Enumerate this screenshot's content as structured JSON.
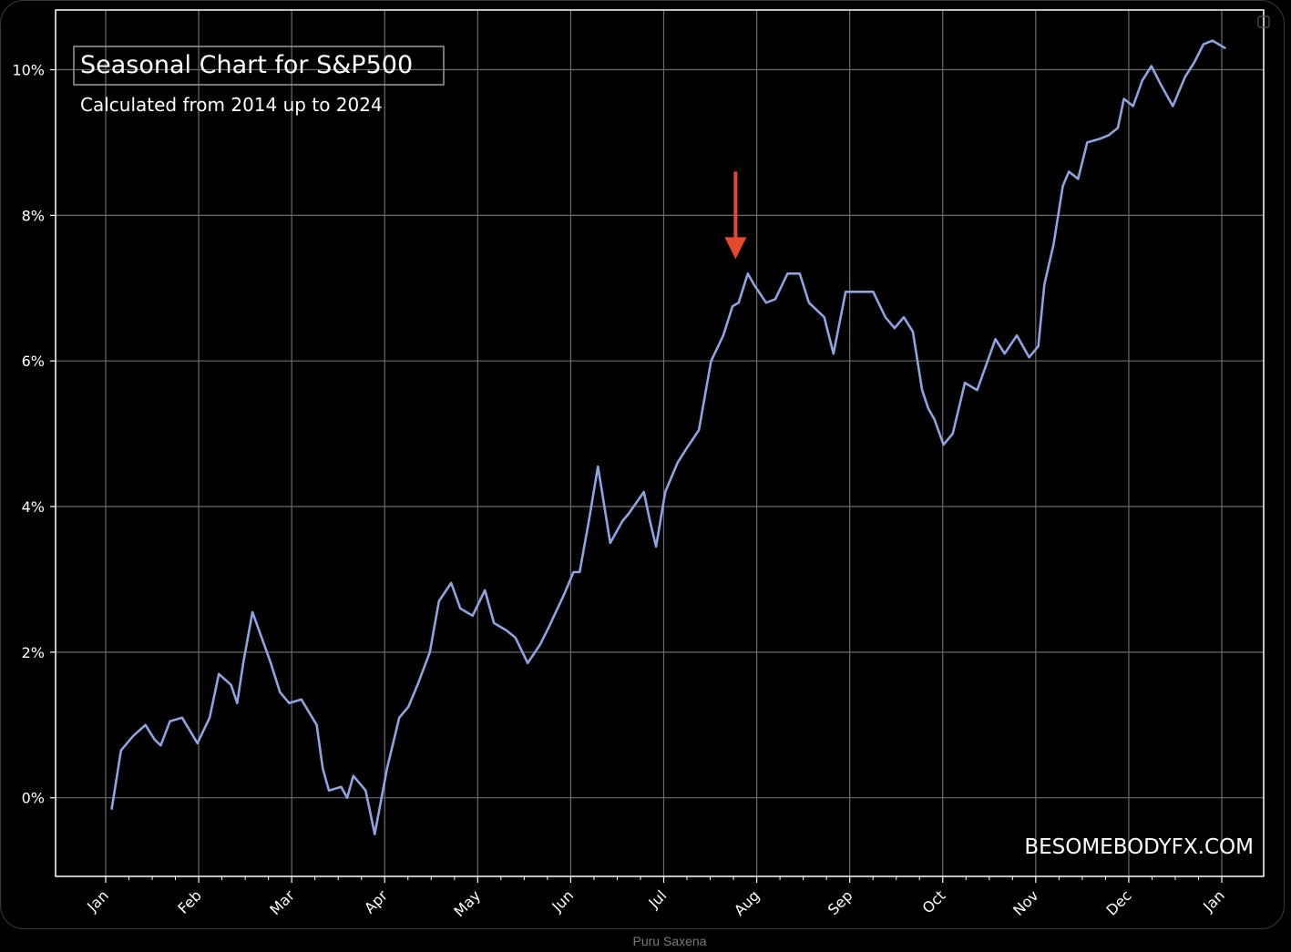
{
  "credit": "Puru Saxena",
  "chart_data": {
    "type": "line",
    "title": "Seasonal Chart for S&P500",
    "subtitle": "Calculated from 2014 up to 2024",
    "watermark": "BESOMEBODYFX.COM",
    "xlabel": "",
    "ylabel": "",
    "ytick_labels": [
      "0%",
      "2%",
      "4%",
      "6%",
      "8%",
      "10%"
    ],
    "ytick_values": [
      0,
      2,
      4,
      6,
      8,
      10
    ],
    "ylim": [
      -1.08,
      10.82
    ],
    "xtick_labels": [
      "Jan",
      "Feb",
      "Mar",
      "Apr",
      "May",
      "Jun",
      "Jul",
      "Aug",
      "Sep",
      "Oct",
      "Nov",
      "Dec",
      "Jan"
    ],
    "grid": true,
    "legend": "none",
    "line_color": "#8fa3e0",
    "annotation_color": "#e64a2e",
    "annotation": {
      "type": "arrow",
      "day": 206,
      "value_from": 8.6,
      "value_to": 7.4
    },
    "series": [
      {
        "x_unit": "day of year",
        "x": [
          2,
          5,
          9,
          13,
          16,
          18,
          21,
          25,
          30,
          34,
          37,
          41,
          43,
          45,
          48,
          51,
          54,
          57,
          60,
          64,
          69,
          71,
          73,
          77,
          79,
          81,
          83,
          85,
          88,
          92,
          96,
          99,
          102,
          106,
          109,
          113,
          116,
          120,
          124,
          127,
          131,
          134,
          138,
          142,
          145,
          150,
          153,
          155,
          158,
          161,
          165,
          169,
          171,
          176,
          178,
          180,
          183,
          187,
          190,
          194,
          198,
          202,
          205,
          207,
          210,
          212,
          216,
          219,
          223,
          227,
          230,
          235,
          238,
          242,
          247,
          251,
          255,
          258,
          261,
          264,
          267,
          269,
          271,
          274,
          277,
          281,
          285,
          288,
          291,
          294,
          298,
          302,
          305,
          307,
          310,
          313,
          315,
          318,
          321,
          325,
          328,
          331,
          333,
          336,
          339,
          342,
          345,
          349,
          353,
          356,
          359,
          362,
          366
        ],
        "values": [
          -0.15,
          0.65,
          0.85,
          1.0,
          0.8,
          0.72,
          1.05,
          1.1,
          0.75,
          1.1,
          1.7,
          1.55,
          1.3,
          1.85,
          2.55,
          2.2,
          1.85,
          1.45,
          1.3,
          1.35,
          1.0,
          0.4,
          0.1,
          0.15,
          0.0,
          0.3,
          0.2,
          0.1,
          -0.5,
          0.4,
          1.1,
          1.25,
          1.55,
          2.0,
          2.7,
          2.95,
          2.6,
          2.5,
          2.85,
          2.4,
          2.3,
          2.2,
          1.85,
          2.1,
          2.35,
          2.8,
          3.1,
          3.1,
          3.8,
          4.55,
          3.5,
          3.8,
          3.9,
          4.2,
          3.8,
          3.45,
          4.2,
          4.6,
          4.8,
          5.05,
          6.0,
          6.35,
          6.75,
          6.8,
          7.2,
          7.05,
          6.8,
          6.85,
          7.2,
          7.2,
          6.8,
          6.6,
          6.1,
          6.95,
          6.95,
          6.95,
          6.6,
          6.45,
          6.6,
          6.4,
          5.6,
          5.35,
          5.2,
          4.85,
          5.0,
          5.7,
          5.6,
          5.95,
          6.3,
          6.1,
          6.35,
          6.05,
          6.2,
          7.05,
          7.6,
          8.4,
          8.6,
          8.5,
          9.0,
          9.05,
          9.1,
          9.2,
          9.6,
          9.5,
          9.85,
          10.05,
          9.8,
          9.5,
          9.9,
          10.1,
          10.35,
          10.4,
          10.3
        ]
      }
    ]
  }
}
